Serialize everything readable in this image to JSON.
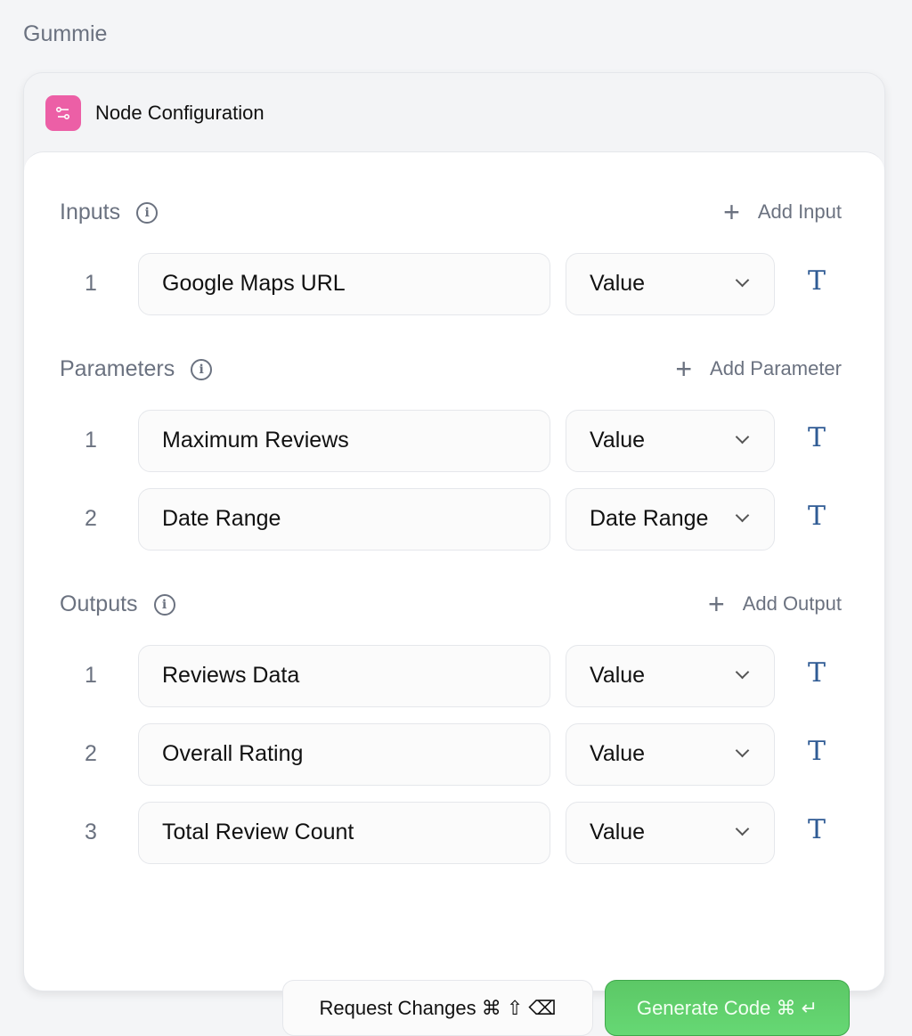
{
  "app_title": "Gummie",
  "header": {
    "title": "Node Configuration",
    "icon": "sliders-icon",
    "icon_color": "#ec5fa6"
  },
  "sections": {
    "inputs": {
      "title": "Inputs",
      "add_label": "Add Input",
      "rows": [
        {
          "num": "1",
          "name": "Google Maps URL",
          "type": "Value"
        }
      ]
    },
    "parameters": {
      "title": "Parameters",
      "add_label": "Add Parameter",
      "rows": [
        {
          "num": "1",
          "name": "Maximum Reviews",
          "type": "Value"
        },
        {
          "num": "2",
          "name": "Date Range",
          "type": "Date Range"
        }
      ]
    },
    "outputs": {
      "title": "Outputs",
      "add_label": "Add Output",
      "rows": [
        {
          "num": "1",
          "name": "Reviews Data",
          "type": "Value"
        },
        {
          "num": "2",
          "name": "Overall Rating",
          "type": "Value"
        },
        {
          "num": "3",
          "name": "Total Review Count",
          "type": "Value"
        }
      ]
    }
  },
  "buttons": {
    "request_changes": "Request Changes ⌘ ⇧ ⌫",
    "generate_code": "Generate Code ⌘ ↵",
    "generate_color": "#5fcf6d"
  }
}
